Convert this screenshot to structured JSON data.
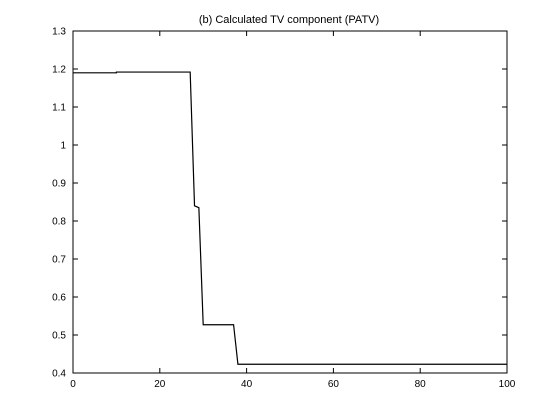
{
  "chart_data": {
    "type": "line",
    "title": "(b) Calculated TV component (PATV)",
    "xlabel": "",
    "ylabel": "",
    "xlim": [
      0,
      100
    ],
    "ylim": [
      0.4,
      1.3
    ],
    "x_ticks": [
      0,
      20,
      40,
      60,
      80,
      100
    ],
    "x_tick_labels": [
      "0",
      "20",
      "40",
      "60",
      "80",
      "100"
    ],
    "y_ticks": [
      0.4,
      0.5,
      0.6,
      0.7,
      0.8,
      0.9,
      1.0,
      1.1,
      1.2,
      1.3
    ],
    "y_tick_labels": [
      "0.4",
      "0.5",
      "0.6",
      "0.7",
      "0.8",
      "0.9",
      "1",
      "1.1",
      "1.2",
      "1.3"
    ],
    "grid": false,
    "legend": "none",
    "line_color": "#000000",
    "series": [
      {
        "x": [
          0,
          10,
          10,
          27,
          28,
          29,
          30,
          37,
          38,
          100
        ],
        "y": [
          1.19,
          1.19,
          1.192,
          1.192,
          0.84,
          0.835,
          0.527,
          0.527,
          0.423,
          0.423
        ]
      }
    ]
  }
}
